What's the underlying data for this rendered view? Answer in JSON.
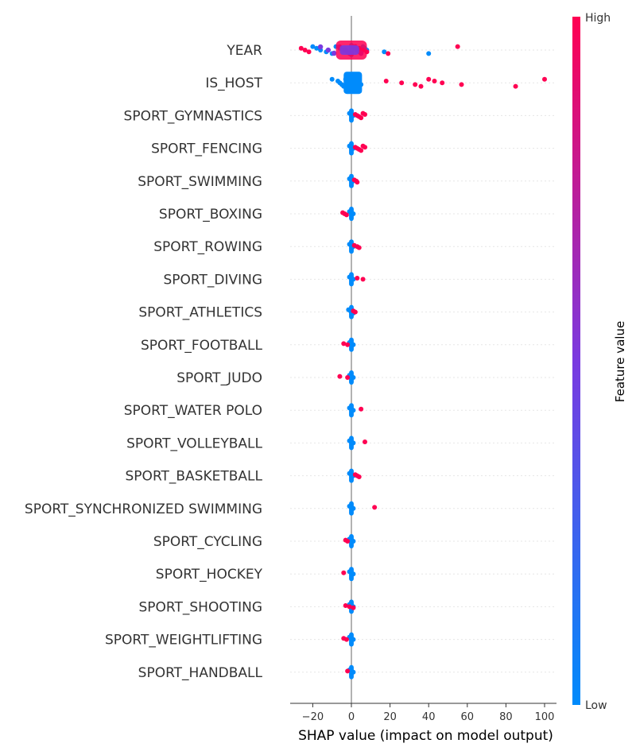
{
  "chart_data": {
    "type": "scatter",
    "subtype": "shap-beeswarm",
    "title": "",
    "xlabel": "SHAP value (impact on model output)",
    "ylabel": "",
    "xlim": [
      -32,
      105
    ],
    "xticks": [
      -20,
      0,
      20,
      40,
      60,
      80,
      100
    ],
    "xtick_labels": [
      "−20",
      "0",
      "20",
      "40",
      "60",
      "80",
      "100"
    ],
    "colorbar": {
      "title": "Feature value",
      "high_label": "High",
      "low_label": "Low",
      "high_color": "#ff0052",
      "mid_color": "#7a3ae0",
      "low_color": "#008bfb"
    },
    "features": [
      {
        "name": "YEAR",
        "low_points": [
          -20,
          -18,
          -16,
          -13,
          -10,
          -8,
          -6,
          -4,
          -2,
          0,
          1,
          2,
          3,
          4,
          5,
          6,
          7,
          8,
          17,
          40
        ],
        "high_points": [
          -26,
          -24,
          -22,
          0,
          2,
          4,
          6,
          8,
          19,
          55
        ]
      },
      {
        "name": "IS_HOST",
        "low_points": [
          -10,
          -7,
          -6,
          -5,
          -4,
          -3,
          -2,
          -1,
          0,
          1,
          2,
          3,
          4,
          5
        ],
        "high_points": [
          18,
          26,
          33,
          36,
          40,
          43,
          47,
          57,
          85,
          100
        ]
      },
      {
        "name": "SPORT_GYMNASTICS",
        "low_points": [
          -1,
          0,
          1
        ],
        "high_points": [
          2,
          3,
          4,
          5,
          6,
          7
        ]
      },
      {
        "name": "SPORT_FENCING",
        "low_points": [
          -1,
          0,
          1
        ],
        "high_points": [
          2,
          3,
          4,
          5,
          6,
          7
        ]
      },
      {
        "name": "SPORT_SWIMMING",
        "low_points": [
          -1,
          0,
          1
        ],
        "high_points": [
          1.5,
          2.5,
          3
        ]
      },
      {
        "name": "SPORT_BOXING",
        "low_points": [
          -1,
          0,
          1
        ],
        "high_points": [
          -4.5,
          -3.5,
          -2.5
        ]
      },
      {
        "name": "SPORT_ROWING",
        "low_points": [
          -1,
          0,
          1
        ],
        "high_points": [
          1.5,
          3,
          4
        ]
      },
      {
        "name": "SPORT_DIVING",
        "low_points": [
          -1,
          0,
          1
        ],
        "high_points": [
          3,
          6
        ]
      },
      {
        "name": "SPORT_ATHLETICS",
        "low_points": [
          -1.5,
          -0.5,
          0,
          1
        ],
        "high_points": [
          1,
          2
        ]
      },
      {
        "name": "SPORT_FOOTBALL",
        "low_points": [
          -1,
          0,
          1
        ],
        "high_points": [
          -4,
          -2
        ]
      },
      {
        "name": "SPORT_JUDO",
        "low_points": [
          -1,
          0,
          1
        ],
        "high_points": [
          -6,
          -2
        ]
      },
      {
        "name": "SPORT_WATER POLO",
        "low_points": [
          -1,
          0,
          1
        ],
        "high_points": [
          5
        ]
      },
      {
        "name": "SPORT_VOLLEYBALL",
        "low_points": [
          -1,
          0,
          1
        ],
        "high_points": [
          7
        ]
      },
      {
        "name": "SPORT_BASKETBALL",
        "low_points": [
          -1,
          0,
          1
        ],
        "high_points": [
          2,
          3,
          4
        ]
      },
      {
        "name": "SPORT_SYNCHRONIZED SWIMMING",
        "low_points": [
          -1,
          0,
          1
        ],
        "high_points": [
          12
        ]
      },
      {
        "name": "SPORT_CYCLING",
        "low_points": [
          -1,
          0,
          1
        ],
        "high_points": [
          -3,
          -2
        ]
      },
      {
        "name": "SPORT_HOCKEY",
        "low_points": [
          -1,
          0,
          1
        ],
        "high_points": [
          -4
        ]
      },
      {
        "name": "SPORT_SHOOTING",
        "low_points": [
          -1,
          0,
          1
        ],
        "high_points": [
          -3,
          -1,
          1
        ]
      },
      {
        "name": "SPORT_WEIGHTLIFTING",
        "low_points": [
          -1,
          0,
          1
        ],
        "high_points": [
          -4,
          -2.5
        ]
      },
      {
        "name": "SPORT_HANDBALL",
        "low_points": [
          -1,
          0,
          1
        ],
        "high_points": [
          -2
        ]
      }
    ]
  }
}
